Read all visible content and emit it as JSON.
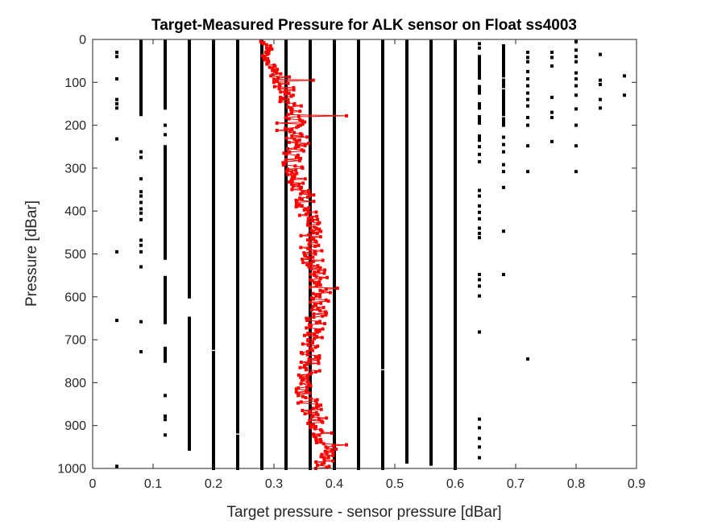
{
  "chart_data": {
    "type": "scatter",
    "title": "Target-Measured Pressure for ALK sensor on Float ss4003",
    "xlabel": "Target pressure - sensor pressure [dBar]",
    "ylabel": "Pressure [dBar]",
    "xlim": [
      0,
      0.9
    ],
    "ylim": [
      0,
      1000
    ],
    "y_reversed": true,
    "grid": false,
    "x_ticks": [
      "0",
      "0.1",
      "0.2",
      "0.3",
      "0.4",
      "0.5",
      "0.6",
      "0.7",
      "0.8",
      "0.9"
    ],
    "y_ticks": [
      "0",
      "100",
      "200",
      "300",
      "400",
      "500",
      "600",
      "700",
      "800",
      "900",
      "1000"
    ],
    "colors": {
      "measurements": "#000000",
      "profile_line": "#ff0000"
    },
    "series": [
      {
        "kind": "vertical-column",
        "note_values": "columns of square markers at quantized x offsets; each range is a dense run of markers, singles are isolated markers",
        "columns": [
          {
            "x": 0.04,
            "ranges": [],
            "singles": [
              30,
              40,
              92,
              140,
              150,
              160,
              232,
              495,
              655,
              995
            ]
          },
          {
            "x": 0.08,
            "ranges": [
              [
                5,
                175
              ]
            ],
            "singles": [
              262,
              275,
              325,
              355,
              365,
              380,
              395,
              405,
              420,
              468,
              480,
              495,
              530,
              658,
              728
            ]
          },
          {
            "x": 0.12,
            "ranges": [
              [
                5,
                160
              ],
              [
                250,
                510
              ],
              [
                555,
                660
              ],
              [
                720,
                750
              ]
            ],
            "singles": [
              200,
              222,
              830,
              878,
              886,
              922
            ]
          },
          {
            "x": 0.16,
            "ranges": [
              [
                5,
                600
              ],
              [
                650,
                955
              ]
            ],
            "singles": []
          },
          {
            "x": 0.2,
            "ranges": [
              [
                5,
                720
              ],
              [
                730,
                1000
              ]
            ],
            "singles": []
          },
          {
            "x": 0.24,
            "ranges": [
              [
                5,
                915
              ],
              [
                925,
                1000
              ]
            ],
            "singles": []
          },
          {
            "x": 0.28,
            "ranges": [
              [
                5,
                1000
              ]
            ],
            "singles": []
          },
          {
            "x": 0.32,
            "ranges": [
              [
                5,
                1000
              ]
            ],
            "singles": []
          },
          {
            "x": 0.36,
            "ranges": [
              [
                5,
                1000
              ]
            ],
            "singles": []
          },
          {
            "x": 0.4,
            "ranges": [
              [
                5,
                1000
              ]
            ],
            "singles": []
          },
          {
            "x": 0.44,
            "ranges": [
              [
                5,
                1000
              ]
            ],
            "singles": []
          },
          {
            "x": 0.48,
            "ranges": [
              [
                5,
                765
              ],
              [
                775,
                1000
              ]
            ],
            "singles": []
          },
          {
            "x": 0.52,
            "ranges": [
              [
                5,
                985
              ]
            ],
            "singles": []
          },
          {
            "x": 0.56,
            "ranges": [
              [
                5,
                990
              ]
            ],
            "singles": []
          },
          {
            "x": 0.6,
            "ranges": [
              [
                5,
                1000
              ]
            ],
            "singles": []
          },
          {
            "x": 0.64,
            "ranges": [
              [
                40,
                90
              ],
              [
                110,
                125
              ],
              [
                150,
                160
              ],
              [
                180,
                195
              ],
              [
                225,
                235
              ]
            ],
            "singles": [
              10,
              20,
              250,
              268,
              285,
              352,
              365,
              388,
              403,
              418,
              440,
              452,
              462,
              548,
              560,
              575,
              598,
              682,
              885,
              905,
              930,
              950,
              975
            ]
          },
          {
            "x": 0.68,
            "ranges": [
              [
                15,
                85
              ],
              [
                95,
                110
              ],
              [
                120,
                175
              ],
              [
                185,
                200
              ]
            ],
            "singles": [
              228,
              245,
              262,
              292,
              308,
              345,
              447,
              548
            ]
          },
          {
            "x": 0.72,
            "ranges": [],
            "singles": [
              30,
              42,
              52,
              75,
              92,
              108,
              125,
              140,
              155,
              182,
              200,
              248,
              308,
              745
            ]
          },
          {
            "x": 0.76,
            "ranges": [],
            "singles": [
              30,
              42,
              62,
              135,
              170,
              182,
              238
            ]
          },
          {
            "x": 0.8,
            "ranges": [],
            "singles": [
              5,
              25,
              40,
              52,
              78,
              92,
              108,
              130,
              162,
              200,
              248,
              308
            ]
          },
          {
            "x": 0.84,
            "ranges": [],
            "singles": [
              35,
              95,
              105,
              140,
              160
            ]
          },
          {
            "x": 0.88,
            "ranges": [],
            "singles": [
              85,
              130
            ]
          }
        ]
      },
      {
        "kind": "profile",
        "note_values": "red connected line with square markers; x is a smoothed offset, the zigzag about it is drawn with a fixed pseudo-random jitter",
        "anchors": [
          [
            0,
            0.27
          ],
          [
            15,
            0.295
          ],
          [
            40,
            0.285
          ],
          [
            80,
            0.305
          ],
          [
            120,
            0.32
          ],
          [
            160,
            0.33
          ],
          [
            200,
            0.335
          ],
          [
            240,
            0.34
          ],
          [
            280,
            0.33
          ],
          [
            320,
            0.34
          ],
          [
            360,
            0.35
          ],
          [
            400,
            0.355
          ],
          [
            440,
            0.36
          ],
          [
            480,
            0.36
          ],
          [
            520,
            0.365
          ],
          [
            560,
            0.375
          ],
          [
            600,
            0.38
          ],
          [
            640,
            0.37
          ],
          [
            680,
            0.365
          ],
          [
            720,
            0.36
          ],
          [
            760,
            0.36
          ],
          [
            800,
            0.355
          ],
          [
            840,
            0.355
          ],
          [
            880,
            0.37
          ],
          [
            920,
            0.38
          ],
          [
            960,
            0.39
          ],
          [
            1000,
            0.38
          ]
        ],
        "outliers": [
          [
            178,
            0.42
          ],
          [
            195,
            0.305
          ],
          [
            212,
            0.305
          ],
          [
            95,
            0.365
          ],
          [
            580,
            0.405
          ],
          [
            945,
            0.42
          ]
        ]
      }
    ]
  }
}
